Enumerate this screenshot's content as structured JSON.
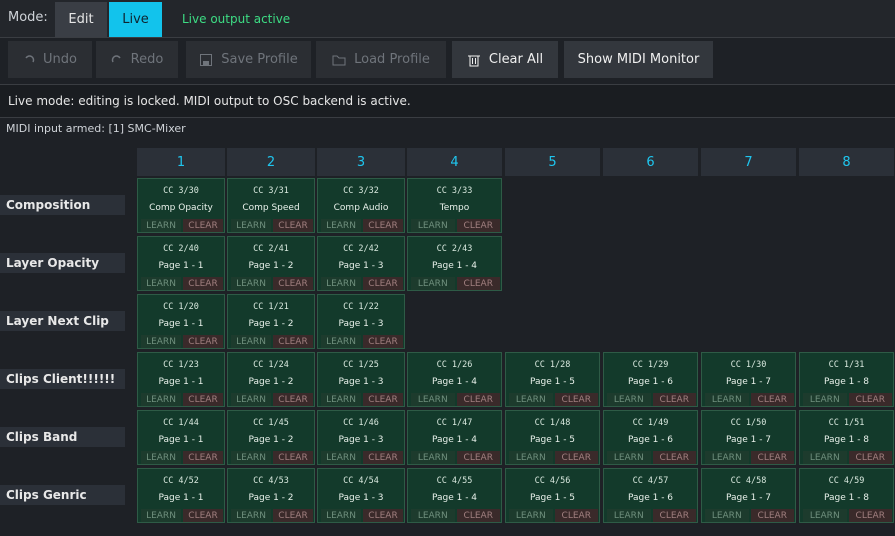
{
  "mode": {
    "label": "Mode:",
    "options": [
      {
        "label": "Edit",
        "active": false
      },
      {
        "label": "Live",
        "active": true
      }
    ],
    "status": "Live output active"
  },
  "toolbar": [
    {
      "label": "Undo",
      "enabled": false
    },
    {
      "label": "Redo",
      "enabled": false
    },
    {
      "label": "Save Profile",
      "enabled": false
    },
    {
      "label": "Load Profile",
      "enabled": false
    },
    {
      "label": "Clear All",
      "enabled": true
    },
    {
      "label": "Show MIDI Monitor",
      "enabled": true
    }
  ],
  "status_message": "Live mode: editing is locked. MIDI output to OSC backend is active.",
  "midi_input": "MIDI input armed: [1] SMC-Mixer",
  "grid": {
    "learn": "LEARN",
    "clear": "CLEAR",
    "columns": [
      "1",
      "2",
      "3",
      "4",
      "5",
      "6",
      "7",
      "8"
    ],
    "rows": [
      {
        "label": "Composition",
        "cells": [
          {
            "cc": "CC 3/30",
            "name": "Comp Opacity"
          },
          {
            "cc": "CC 3/31",
            "name": "Comp Speed"
          },
          {
            "cc": "CC 3/32",
            "name": "Comp Audio"
          },
          {
            "cc": "CC 3/33",
            "name": "Tempo"
          }
        ]
      },
      {
        "label": "Layer Opacity",
        "cells": [
          {
            "cc": "CC 2/40",
            "name": "Page 1 - 1"
          },
          {
            "cc": "CC 2/41",
            "name": "Page 1 - 2"
          },
          {
            "cc": "CC 2/42",
            "name": "Page 1 - 3"
          },
          {
            "cc": "CC 2/43",
            "name": "Page 1 - 4"
          }
        ]
      },
      {
        "label": "Layer Next Clip",
        "cells": [
          {
            "cc": "CC 1/20",
            "name": "Page 1 - 1"
          },
          {
            "cc": "CC 1/21",
            "name": "Page 1 - 2"
          },
          {
            "cc": "CC 1/22",
            "name": "Page 1 - 3"
          }
        ]
      },
      {
        "label": "Clips Client!!!!!!",
        "cells": [
          {
            "cc": "CC 1/23",
            "name": "Page 1 - 1"
          },
          {
            "cc": "CC 1/24",
            "name": "Page 1 - 2"
          },
          {
            "cc": "CC 1/25",
            "name": "Page 1 - 3"
          },
          {
            "cc": "CC 1/26",
            "name": "Page 1 - 4"
          },
          {
            "cc": "CC 1/28",
            "name": "Page 1 - 5"
          },
          {
            "cc": "CC 1/29",
            "name": "Page 1 - 6"
          },
          {
            "cc": "CC 1/30",
            "name": "Page 1 - 7"
          },
          {
            "cc": "CC 1/31",
            "name": "Page 1 - 8"
          }
        ]
      },
      {
        "label": "Clips Band",
        "cells": [
          {
            "cc": "CC 1/44",
            "name": "Page 1 - 1"
          },
          {
            "cc": "CC 1/45",
            "name": "Page 1 - 2"
          },
          {
            "cc": "CC 1/46",
            "name": "Page 1 - 3"
          },
          {
            "cc": "CC 1/47",
            "name": "Page 1 - 4"
          },
          {
            "cc": "CC 1/48",
            "name": "Page 1 - 5"
          },
          {
            "cc": "CC 1/49",
            "name": "Page 1 - 6"
          },
          {
            "cc": "CC 1/50",
            "name": "Page 1 - 7"
          },
          {
            "cc": "CC 1/51",
            "name": "Page 1 - 8"
          }
        ]
      },
      {
        "label": "Clips Genric",
        "cells": [
          {
            "cc": "CC 4/52",
            "name": "Page 1 - 1"
          },
          {
            "cc": "CC 4/53",
            "name": "Page 1 - 2"
          },
          {
            "cc": "CC 4/54",
            "name": "Page 1 - 3"
          },
          {
            "cc": "CC 4/55",
            "name": "Page 1 - 4"
          },
          {
            "cc": "CC 4/56",
            "name": "Page 1 - 5"
          },
          {
            "cc": "CC 4/57",
            "name": "Page 1 - 6"
          },
          {
            "cc": "CC 4/58",
            "name": "Page 1 - 7"
          },
          {
            "cc": "CC 4/59",
            "name": "Page 1 - 8"
          }
        ]
      }
    ]
  }
}
